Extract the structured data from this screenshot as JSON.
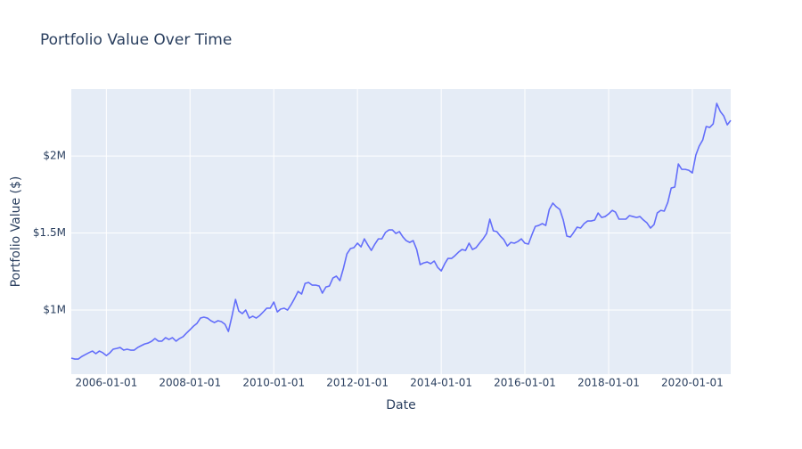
{
  "chart_data": {
    "type": "line",
    "title": "Portfolio Value Over Time",
    "x_label": "Date",
    "y_label": "Portfolio Value ($)",
    "color": "#636efa",
    "grid": true,
    "xlim": [
      "2005-03-01",
      "2020-12-01"
    ],
    "ylim": [
      584000,
      2434000
    ],
    "xticks": [
      "2006-01-01",
      "2008-01-01",
      "2010-01-01",
      "2012-01-01",
      "2014-01-01",
      "2016-01-01",
      "2018-01-01",
      "2020-01-01"
    ],
    "yticks": [
      {
        "value": 1000000,
        "label": "$1M"
      },
      {
        "value": 1500000,
        "label": "$1.5M"
      },
      {
        "value": 2000000,
        "label": "$2M"
      }
    ],
    "x": [
      "2005-03-01",
      "2005-04-01",
      "2005-05-01",
      "2005-06-01",
      "2005-07-01",
      "2005-08-01",
      "2005-09-01",
      "2005-10-01",
      "2005-11-01",
      "2005-12-01",
      "2006-01-01",
      "2006-02-01",
      "2006-03-01",
      "2006-04-01",
      "2006-05-01",
      "2006-06-01",
      "2006-07-01",
      "2006-08-01",
      "2006-09-01",
      "2006-10-01",
      "2006-11-01",
      "2006-12-01",
      "2007-01-01",
      "2007-02-01",
      "2007-03-01",
      "2007-04-01",
      "2007-05-01",
      "2007-06-01",
      "2007-07-01",
      "2007-08-01",
      "2007-09-01",
      "2007-10-01",
      "2007-11-01",
      "2007-12-01",
      "2008-01-01",
      "2008-02-01",
      "2008-03-01",
      "2008-04-01",
      "2008-05-01",
      "2008-06-01",
      "2008-07-01",
      "2008-08-01",
      "2008-09-01",
      "2008-10-01",
      "2008-11-01",
      "2008-12-01",
      "2009-01-01",
      "2009-02-01",
      "2009-03-01",
      "2009-04-01",
      "2009-05-01",
      "2009-06-01",
      "2009-07-01",
      "2009-08-01",
      "2009-09-01",
      "2009-10-01",
      "2009-11-01",
      "2009-12-01",
      "2010-01-01",
      "2010-02-01",
      "2010-03-01",
      "2010-04-01",
      "2010-05-01",
      "2010-06-01",
      "2010-07-01",
      "2010-08-01",
      "2010-09-01",
      "2010-10-01",
      "2010-11-01",
      "2010-12-01",
      "2011-01-01",
      "2011-02-01",
      "2011-03-01",
      "2011-04-01",
      "2011-05-01",
      "2011-06-01",
      "2011-07-01",
      "2011-08-01",
      "2011-09-01",
      "2011-10-01",
      "2011-11-01",
      "2011-12-01",
      "2012-01-01",
      "2012-02-01",
      "2012-03-01",
      "2012-04-01",
      "2012-05-01",
      "2012-06-01",
      "2012-07-01",
      "2012-08-01",
      "2012-09-01",
      "2012-10-01",
      "2012-11-01",
      "2012-12-01",
      "2013-01-01",
      "2013-02-01",
      "2013-03-01",
      "2013-04-01",
      "2013-05-01",
      "2013-06-01",
      "2013-07-01",
      "2013-08-01",
      "2013-09-01",
      "2013-10-01",
      "2013-11-01",
      "2013-12-01",
      "2014-01-01",
      "2014-02-01",
      "2014-03-01",
      "2014-04-01",
      "2014-05-01",
      "2014-06-01",
      "2014-07-01",
      "2014-08-01",
      "2014-09-01",
      "2014-10-01",
      "2014-11-01",
      "2014-12-01",
      "2015-01-01",
      "2015-02-01",
      "2015-03-01",
      "2015-04-01",
      "2015-05-01",
      "2015-06-01",
      "2015-07-01",
      "2015-08-01",
      "2015-09-01",
      "2015-10-01",
      "2015-11-01",
      "2015-12-01",
      "2016-01-01",
      "2016-02-01",
      "2016-03-01",
      "2016-04-01",
      "2016-05-01",
      "2016-06-01",
      "2016-07-01",
      "2016-08-01",
      "2016-09-01",
      "2016-10-01",
      "2016-11-01",
      "2016-12-01",
      "2017-01-01",
      "2017-02-01",
      "2017-03-01",
      "2017-04-01",
      "2017-05-01",
      "2017-06-01",
      "2017-07-01",
      "2017-08-01",
      "2017-09-01",
      "2017-10-01",
      "2017-11-01",
      "2017-12-01",
      "2018-01-01",
      "2018-02-01",
      "2018-03-01",
      "2018-04-01",
      "2018-05-01",
      "2018-06-01",
      "2018-07-01",
      "2018-08-01",
      "2018-09-01",
      "2018-10-01",
      "2018-11-01",
      "2018-12-01",
      "2019-01-01",
      "2019-02-01",
      "2019-03-01",
      "2019-04-01",
      "2019-05-01",
      "2019-06-01",
      "2019-07-01",
      "2019-08-01",
      "2019-09-01",
      "2019-10-01",
      "2019-11-01",
      "2019-12-01",
      "2020-01-01",
      "2020-02-01",
      "2020-03-01",
      "2020-04-01",
      "2020-05-01",
      "2020-06-01",
      "2020-07-01",
      "2020-08-01",
      "2020-09-01",
      "2020-10-01",
      "2020-11-01",
      "2020-12-01"
    ],
    "values": [
      688000,
      682000,
      682000,
      699000,
      711000,
      723000,
      734000,
      717000,
      734000,
      723000,
      705000,
      723000,
      746000,
      751000,
      757000,
      740000,
      746000,
      740000,
      740000,
      757000,
      769000,
      780000,
      786000,
      798000,
      815000,
      798000,
      798000,
      821000,
      809000,
      821000,
      798000,
      815000,
      827000,
      850000,
      873000,
      896000,
      913000,
      948000,
      954000,
      948000,
      931000,
      919000,
      931000,
      925000,
      908000,
      861000,
      960000,
      1069000,
      994000,
      977000,
      1000000,
      948000,
      960000,
      948000,
      965000,
      988000,
      1012000,
      1012000,
      1052000,
      988000,
      1006000,
      1012000,
      1000000,
      1035000,
      1075000,
      1121000,
      1104000,
      1173000,
      1179000,
      1162000,
      1162000,
      1156000,
      1110000,
      1150000,
      1156000,
      1208000,
      1220000,
      1191000,
      1272000,
      1364000,
      1399000,
      1405000,
      1434000,
      1410000,
      1462000,
      1422000,
      1387000,
      1428000,
      1462000,
      1462000,
      1503000,
      1520000,
      1520000,
      1497000,
      1509000,
      1474000,
      1451000,
      1439000,
      1451000,
      1393000,
      1295000,
      1306000,
      1312000,
      1301000,
      1318000,
      1277000,
      1254000,
      1301000,
      1335000,
      1335000,
      1353000,
      1376000,
      1393000,
      1387000,
      1434000,
      1393000,
      1405000,
      1434000,
      1462000,
      1497000,
      1590000,
      1514000,
      1509000,
      1480000,
      1457000,
      1416000,
      1439000,
      1434000,
      1445000,
      1462000,
      1434000,
      1428000,
      1486000,
      1543000,
      1549000,
      1561000,
      1549000,
      1653000,
      1694000,
      1670000,
      1653000,
      1584000,
      1480000,
      1474000,
      1503000,
      1538000,
      1532000,
      1561000,
      1578000,
      1578000,
      1584000,
      1630000,
      1601000,
      1607000,
      1624000,
      1647000,
      1636000,
      1590000,
      1590000,
      1590000,
      1613000,
      1607000,
      1601000,
      1607000,
      1584000,
      1566000,
      1532000,
      1555000,
      1630000,
      1647000,
      1642000,
      1699000,
      1792000,
      1798000,
      1948000,
      1913000,
      1913000,
      1907000,
      1890000,
      2006000,
      2064000,
      2104000,
      2191000,
      2185000,
      2208000,
      2341000,
      2289000,
      2260000,
      2202000,
      2231000
    ]
  }
}
